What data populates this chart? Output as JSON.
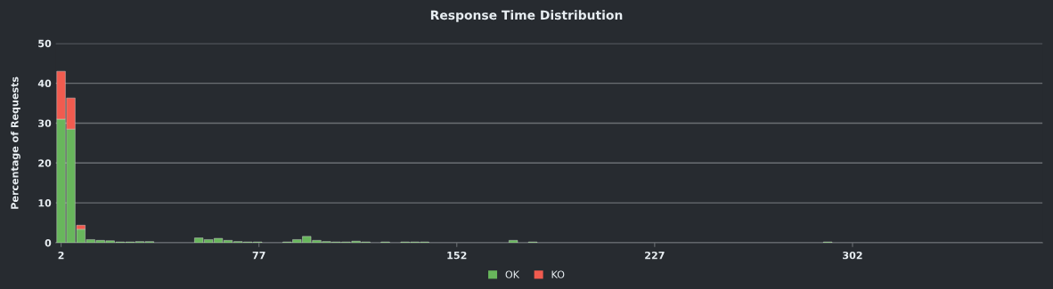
{
  "chart_data": {
    "type": "bar",
    "title": "Response Time Distribution",
    "ylabel": "Percentage of Requests",
    "stacked": true,
    "x": [
      2,
      5.7,
      9.5,
      13.2,
      16.9,
      20.6,
      24.4,
      28.1,
      31.8,
      35.5,
      54.2,
      57.9,
      61.6,
      65.3,
      69.1,
      72.8,
      76.5,
      87.7,
      91.4,
      95.1,
      98.9,
      102.6,
      106.3,
      110,
      113.8,
      117.5,
      124.9,
      132.4,
      136.1,
      139.8,
      173.4,
      180.8,
      292.6
    ],
    "series": [
      {
        "name": "OK",
        "color": "#68b65c",
        "values": [
          31,
          28.5,
          3.4,
          0.8,
          0.6,
          0.5,
          0.2,
          0.2,
          0.3,
          0.3,
          1.2,
          0.8,
          1.1,
          0.6,
          0.3,
          0.2,
          0.2,
          0.2,
          0.8,
          1.6,
          0.6,
          0.3,
          0.2,
          0.2,
          0.4,
          0.2,
          0.2,
          0.2,
          0.2,
          0.2,
          0.6,
          0.2,
          0.2
        ]
      },
      {
        "name": "KO",
        "color": "#f15b4f",
        "values": [
          12,
          7.8,
          1,
          null,
          null,
          null,
          null,
          null,
          null,
          null,
          null,
          null,
          null,
          null,
          null,
          null,
          null,
          null,
          null,
          null,
          null,
          null,
          null,
          null,
          null,
          null,
          null,
          null,
          null,
          null,
          null,
          null,
          null
        ]
      }
    ],
    "xlim": [
      0,
      374
    ],
    "xticks": [
      2,
      77,
      152,
      227,
      302
    ],
    "ylim": [
      0,
      50
    ],
    "yticks": [
      0,
      10,
      20,
      30,
      40,
      50
    ],
    "grid": "y",
    "legend": "bottom"
  }
}
